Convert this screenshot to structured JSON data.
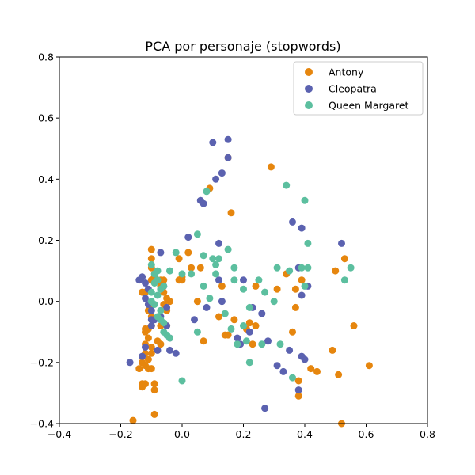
{
  "chart_data": {
    "type": "scatter",
    "title": "PCA por personaje (stopwords)",
    "xlabel": "",
    "ylabel": "",
    "xlim": [
      -0.4,
      0.8
    ],
    "ylim": [
      -0.4,
      0.8
    ],
    "xticks": [
      "−0.4",
      "−0.2",
      "0.0",
      "0.2",
      "0.4",
      "0.6",
      "0.8"
    ],
    "yticks": [
      "−0.4",
      "−0.2",
      "0.0",
      "0.2",
      "0.4",
      "0.6",
      "0.8"
    ],
    "grid": false,
    "legend_position": "top-right",
    "series": [
      {
        "name": "Antony",
        "color": "#e6860e",
        "points": [
          [
            -0.16,
            -0.39
          ],
          [
            -0.13,
            -0.27
          ],
          [
            -0.13,
            -0.28
          ],
          [
            -0.12,
            -0.27
          ],
          [
            -0.09,
            -0.27
          ],
          [
            -0.09,
            -0.29
          ],
          [
            -0.09,
            -0.37
          ],
          [
            -0.14,
            -0.22
          ],
          [
            -0.13,
            -0.2
          ],
          [
            -0.12,
            -0.21
          ],
          [
            -0.11,
            -0.22
          ],
          [
            -0.1,
            -0.22
          ],
          [
            -0.11,
            -0.19
          ],
          [
            -0.1,
            -0.17
          ],
          [
            -0.12,
            -0.17
          ],
          [
            -0.1,
            -0.15
          ],
          [
            -0.12,
            -0.14
          ],
          [
            -0.11,
            -0.12
          ],
          [
            -0.12,
            -0.1
          ],
          [
            -0.11,
            -0.09
          ],
          [
            -0.12,
            -0.09
          ],
          [
            -0.1,
            -0.08
          ],
          [
            -0.1,
            -0.05
          ],
          [
            -0.11,
            -0.03
          ],
          [
            -0.1,
            -0.01
          ],
          [
            -0.12,
            0.03
          ],
          [
            -0.13,
            0.03
          ],
          [
            -0.1,
            0.07
          ],
          [
            -0.09,
            0.08
          ],
          [
            -0.1,
            0.11
          ],
          [
            -0.1,
            0.14
          ],
          [
            -0.1,
            0.17
          ],
          [
            -0.07,
            0.07
          ],
          [
            -0.06,
            0.07
          ],
          [
            -0.07,
            0.05
          ],
          [
            -0.06,
            0.03
          ],
          [
            -0.05,
            0.01
          ],
          [
            -0.04,
            0.0
          ],
          [
            -0.06,
            -0.01
          ],
          [
            -0.05,
            -0.03
          ],
          [
            -0.07,
            -0.08
          ],
          [
            -0.05,
            -0.08
          ],
          [
            -0.08,
            -0.13
          ],
          [
            -0.07,
            -0.14
          ],
          [
            -0.01,
            0.07
          ],
          [
            0.0,
            0.08
          ],
          [
            0.0,
            0.07
          ],
          [
            -0.01,
            0.14
          ],
          [
            0.02,
            0.16
          ],
          [
            0.03,
            0.11
          ],
          [
            0.05,
            0.0
          ],
          [
            0.07,
            -0.13
          ],
          [
            0.06,
            0.11
          ],
          [
            0.09,
            0.37
          ],
          [
            0.12,
            -0.05
          ],
          [
            0.13,
            0.05
          ],
          [
            0.14,
            -0.11
          ],
          [
            0.15,
            -0.11
          ],
          [
            0.16,
            0.29
          ],
          [
            0.17,
            -0.06
          ],
          [
            0.15,
            0.47
          ],
          [
            0.21,
            -0.09
          ],
          [
            0.22,
            -0.07
          ],
          [
            0.23,
            -0.14
          ],
          [
            0.24,
            -0.08
          ],
          [
            0.24,
            0.05
          ],
          [
            0.29,
            0.44
          ],
          [
            0.31,
            0.04
          ],
          [
            0.34,
            0.09
          ],
          [
            0.36,
            -0.1
          ],
          [
            0.37,
            -0.02
          ],
          [
            0.37,
            0.04
          ],
          [
            0.38,
            -0.26
          ],
          [
            0.38,
            -0.31
          ],
          [
            0.39,
            0.07
          ],
          [
            0.42,
            -0.22
          ],
          [
            0.44,
            -0.23
          ],
          [
            0.49,
            -0.16
          ],
          [
            0.5,
            0.1
          ],
          [
            0.51,
            -0.24
          ],
          [
            0.53,
            0.14
          ],
          [
            0.52,
            -0.4
          ],
          [
            0.56,
            -0.08
          ],
          [
            0.61,
            -0.21
          ]
        ]
      },
      {
        "name": "Cleopatra",
        "color": "#5b62b0",
        "points": [
          [
            -0.17,
            -0.2
          ],
          [
            -0.13,
            -0.18
          ],
          [
            -0.12,
            -0.15
          ],
          [
            -0.14,
            0.07
          ],
          [
            -0.13,
            0.08
          ],
          [
            -0.12,
            0.06
          ],
          [
            -0.11,
            0.04
          ],
          [
            -0.12,
            0.01
          ],
          [
            -0.11,
            -0.01
          ],
          [
            -0.1,
            -0.03
          ],
          [
            -0.1,
            -0.06
          ],
          [
            -0.1,
            -0.08
          ],
          [
            -0.09,
            -0.06
          ],
          [
            -0.08,
            -0.16
          ],
          [
            -0.07,
            -0.05
          ],
          [
            -0.06,
            0.05
          ],
          [
            -0.05,
            -0.02
          ],
          [
            -0.05,
            -0.08
          ],
          [
            -0.04,
            -0.12
          ],
          [
            -0.04,
            -0.16
          ],
          [
            -0.02,
            -0.17
          ],
          [
            -0.07,
            0.16
          ],
          [
            0.02,
            0.21
          ],
          [
            0.04,
            -0.06
          ],
          [
            0.06,
            0.33
          ],
          [
            0.07,
            0.32
          ],
          [
            0.08,
            -0.02
          ],
          [
            0.1,
            0.52
          ],
          [
            0.11,
            0.4
          ],
          [
            0.12,
            0.19
          ],
          [
            0.12,
            0.07
          ],
          [
            0.13,
            0.0
          ],
          [
            0.13,
            0.42
          ],
          [
            0.15,
            0.53
          ],
          [
            0.15,
            0.47
          ],
          [
            0.18,
            -0.12
          ],
          [
            0.19,
            -0.14
          ],
          [
            0.2,
            0.07
          ],
          [
            0.22,
            -0.1
          ],
          [
            0.23,
            -0.02
          ],
          [
            0.26,
            -0.04
          ],
          [
            0.27,
            -0.35
          ],
          [
            0.28,
            -0.13
          ],
          [
            0.31,
            -0.21
          ],
          [
            0.33,
            -0.23
          ],
          [
            0.35,
            -0.16
          ],
          [
            0.36,
            0.26
          ],
          [
            0.38,
            -0.29
          ],
          [
            0.38,
            0.11
          ],
          [
            0.39,
            0.24
          ],
          [
            0.39,
            0.02
          ],
          [
            0.39,
            -0.18
          ],
          [
            0.4,
            -0.19
          ],
          [
            0.41,
            0.05
          ],
          [
            0.52,
            0.19
          ]
        ]
      },
      {
        "name": "Queen Margaret",
        "color": "#5cbf9f",
        "points": [
          [
            -0.1,
            0.12
          ],
          [
            -0.09,
            0.06
          ],
          [
            -0.08,
            0.07
          ],
          [
            -0.1,
            0.03
          ],
          [
            -0.08,
            0.02
          ],
          [
            -0.07,
            0.04
          ],
          [
            -0.1,
            0.0
          ],
          [
            -0.09,
            -0.01
          ],
          [
            -0.07,
            -0.03
          ],
          [
            -0.08,
            -0.05
          ],
          [
            -0.07,
            -0.06
          ],
          [
            -0.06,
            -0.07
          ],
          [
            -0.09,
            0.09
          ],
          [
            -0.08,
            0.1
          ],
          [
            -0.06,
            0.05
          ],
          [
            -0.06,
            -0.1
          ],
          [
            -0.05,
            -0.11
          ],
          [
            -0.04,
            -0.12
          ],
          [
            0.0,
            0.09
          ],
          [
            -0.02,
            0.16
          ],
          [
            0.03,
            0.09
          ],
          [
            0.05,
            0.22
          ],
          [
            0.07,
            0.15
          ],
          [
            0.08,
            0.36
          ],
          [
            0.09,
            0.01
          ],
          [
            0.1,
            0.14
          ],
          [
            0.11,
            0.09
          ],
          [
            0.12,
            0.14
          ],
          [
            0.14,
            -0.04
          ],
          [
            0.15,
            0.17
          ],
          [
            0.16,
            -0.09
          ],
          [
            0.17,
            0.11
          ],
          [
            0.17,
            0.07
          ],
          [
            0.18,
            -0.14
          ],
          [
            0.2,
            -0.08
          ],
          [
            0.21,
            -0.13
          ],
          [
            0.22,
            -0.02
          ],
          [
            0.22,
            -0.2
          ],
          [
            0.25,
            0.07
          ],
          [
            0.26,
            -0.14
          ],
          [
            0.27,
            0.03
          ],
          [
            0.3,
            0.0
          ],
          [
            0.31,
            0.11
          ],
          [
            0.32,
            -0.14
          ],
          [
            0.34,
            0.38
          ],
          [
            0.35,
            0.1
          ],
          [
            0.36,
            -0.25
          ],
          [
            0.39,
            0.11
          ],
          [
            0.4,
            0.05
          ],
          [
            0.4,
            0.33
          ],
          [
            0.41,
            0.19
          ],
          [
            0.41,
            0.11
          ],
          [
            0.53,
            0.07
          ],
          [
            0.55,
            0.11
          ],
          [
            0.0,
            -0.26
          ],
          [
            -0.04,
            0.1
          ],
          [
            0.05,
            -0.1
          ],
          [
            0.07,
            0.05
          ],
          [
            0.2,
            0.04
          ],
          [
            0.11,
            0.12
          ]
        ]
      }
    ]
  }
}
